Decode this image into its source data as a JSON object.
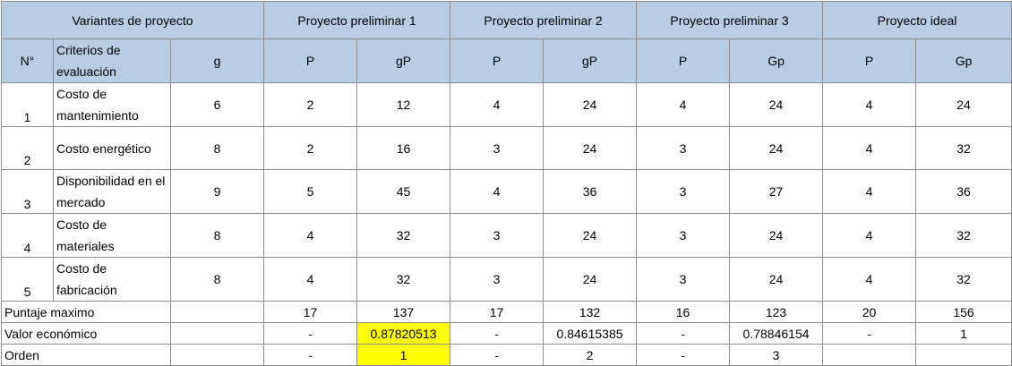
{
  "header": {
    "variants_label": "Variantes de proyecto",
    "groups": [
      "Proyecto preliminar 1",
      "Proyecto preliminar 2",
      "Proyecto preliminar 3",
      "Proyecto ideal"
    ],
    "col_n": "N°",
    "col_criteria": "Criterios de evaluación",
    "col_g": "g",
    "sub": [
      [
        "P",
        "gP"
      ],
      [
        "P",
        "gP"
      ],
      [
        "P",
        "Gp"
      ],
      [
        "P",
        "Gp"
      ]
    ]
  },
  "rows": [
    {
      "n": "1",
      "criterion": "Costo de mantenimiento",
      "g": "6",
      "vals": [
        "2",
        "12",
        "4",
        "24",
        "4",
        "24",
        "4",
        "24"
      ]
    },
    {
      "n": "2",
      "criterion": "Costo energético",
      "g": "8",
      "vals": [
        "2",
        "16",
        "3",
        "24",
        "3",
        "24",
        "4",
        "32"
      ]
    },
    {
      "n": "3",
      "criterion": "Disponibilidad en el mercado",
      "g": "9",
      "vals": [
        "5",
        "45",
        "4",
        "36",
        "3",
        "27",
        "4",
        "36"
      ]
    },
    {
      "n": "4",
      "criterion": "Costo de materiales",
      "g": "8",
      "vals": [
        "4",
        "32",
        "3",
        "24",
        "3",
        "24",
        "4",
        "32"
      ]
    },
    {
      "n": "5",
      "criterion": "Costo de fabricación",
      "g": "8",
      "vals": [
        "4",
        "32",
        "3",
        "24",
        "3",
        "24",
        "4",
        "32"
      ]
    }
  ],
  "summary": [
    {
      "label": "Puntaje maximo",
      "vals": [
        "17",
        "137",
        "17",
        "132",
        "16",
        "123",
        "20",
        "156"
      ]
    },
    {
      "label": "Valor económico",
      "vals": [
        "-",
        "0.87820513",
        "-",
        "0.84615385",
        "-",
        "0.78846154",
        "-",
        "1"
      ]
    },
    {
      "label": "Orden",
      "vals": [
        "-",
        "1",
        "-",
        "2",
        "-",
        "3",
        "",
        ""
      ]
    }
  ]
}
